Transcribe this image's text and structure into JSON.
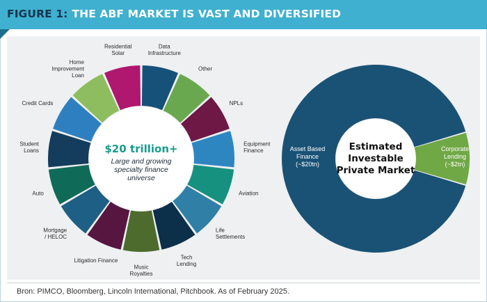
{
  "header": {
    "figure_label": "FIGURE 1:",
    "title": "THE ABF MARKET IS VAST AND DIVERSIFIED"
  },
  "source": "Bron: PIMCO, Bloomberg, Lincoln International, Pitchbook. As of February 2025.",
  "colors": {
    "header_bg": "#3fb0cf",
    "navy": "#1a5276",
    "green": "#70a845",
    "teal": "#199b8e"
  },
  "chart_data": [
    {
      "type": "pie",
      "style": "donut",
      "segments_equal": true,
      "center": {
        "headline": "$20 trillion+",
        "lines": [
          "Large and growing",
          "specialty finance",
          "universe"
        ]
      },
      "segments": [
        {
          "label": "Data Infrastructure",
          "lines": [
            "Data",
            "Infrastructure"
          ],
          "color": "#16517a"
        },
        {
          "label": "Other",
          "lines": [
            "Other"
          ],
          "color": "#6aa84f"
        },
        {
          "label": "NPLs",
          "lines": [
            "NPLs"
          ],
          "color": "#6e1845"
        },
        {
          "label": "Equipment Finance",
          "lines": [
            "Equipment",
            "Finance"
          ],
          "color": "#2e86c1"
        },
        {
          "label": "Aviation",
          "lines": [
            "Aviation"
          ],
          "color": "#17917f"
        },
        {
          "label": "Life Settlements",
          "lines": [
            "Life",
            "Settlements"
          ],
          "color": "#2f7fa6"
        },
        {
          "label": "Tech Lending",
          "lines": [
            "Tech",
            "Lending"
          ],
          "color": "#0c2f4a"
        },
        {
          "label": "Music Royalties",
          "lines": [
            "Music",
            "Royalties"
          ],
          "color": "#4c6b2d"
        },
        {
          "label": "Litigation Finance",
          "lines": [
            "Litigation Finance"
          ],
          "color": "#561640"
        },
        {
          "label": "Mortgage / HELOC",
          "lines": [
            "Mortgage",
            "/ HELOC"
          ],
          "color": "#1e5f86"
        },
        {
          "label": "Auto",
          "lines": [
            "Auto"
          ],
          "color": "#0f6b57"
        },
        {
          "label": "Student Loans",
          "lines": [
            "Student",
            "Loans"
          ],
          "color": "#143c5c"
        },
        {
          "label": "Credit Cards",
          "lines": [
            "Credit Cards"
          ],
          "color": "#2e7fc0"
        },
        {
          "label": "Home Improvement Loan",
          "lines": [
            "Home",
            "Improvement",
            "Loan"
          ],
          "color": "#8dbd5e"
        },
        {
          "label": "Residential Solar",
          "lines": [
            "Residential",
            "Solar"
          ],
          "color": "#b0176f"
        }
      ]
    },
    {
      "type": "pie",
      "style": "donut",
      "center": {
        "lines": [
          "Estimated",
          "Investable",
          "Private Market"
        ]
      },
      "slices": [
        {
          "label": "Asset Based Finance",
          "lines": [
            "Asset Based",
            "Finance",
            "(~$20tn)"
          ],
          "value": 20,
          "color": "#1a5276",
          "text_color": "#ffffff"
        },
        {
          "label": "Corporate Lending",
          "lines": [
            "Corporate",
            "Lending",
            "(~$2tn)"
          ],
          "value": 2,
          "color": "#70a845",
          "text_color": "#ffffff"
        }
      ]
    }
  ]
}
